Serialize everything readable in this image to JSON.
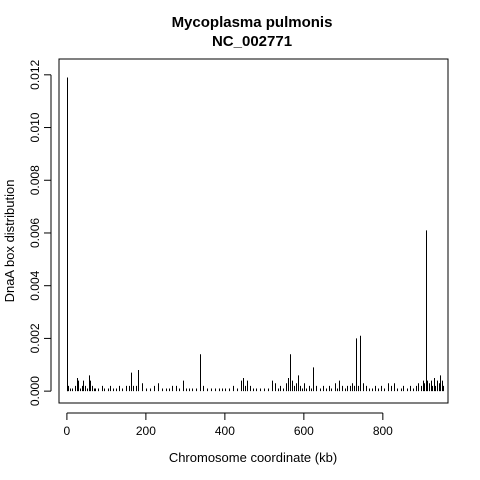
{
  "chart_data": {
    "type": "bar",
    "style": "vertical histogram lines",
    "title": "Mycoplasma pulmonis",
    "subtitle": "NC_002771",
    "xlabel": "Chromosome coordinate (kb)",
    "ylabel": "DnaA box distribution",
    "xlim": [
      -20,
      965
    ],
    "ylim": [
      -0.00045,
      0.0126
    ],
    "xticks": [
      0,
      200,
      400,
      600,
      800
    ],
    "yticks": [
      0,
      0.002,
      0.004,
      0.006,
      0.008,
      0.01,
      0.012
    ],
    "xtick_labels": [
      "0",
      "200",
      "400",
      "600",
      "800"
    ],
    "ytick_labels": [
      "0.000",
      "0.002",
      "0.004",
      "0.006",
      "0.008",
      "0.010",
      "0.012"
    ],
    "grid": false,
    "legend": "none",
    "bar_color": "#000000",
    "x": [
      0,
      1,
      3,
      8,
      14,
      20,
      25,
      29,
      33,
      37,
      42,
      46,
      50,
      55,
      59,
      63,
      68,
      72,
      80,
      88,
      95,
      103,
      110,
      118,
      125,
      133,
      140,
      150,
      158,
      163,
      168,
      175,
      181,
      190,
      200,
      210,
      220,
      230,
      240,
      250,
      258,
      266,
      275,
      285,
      295,
      302,
      310,
      318,
      328,
      336,
      345,
      355,
      365,
      375,
      385,
      393,
      400,
      410,
      420,
      430,
      441,
      446,
      451,
      457,
      463,
      472,
      480,
      490,
      500,
      510,
      520,
      528,
      534,
      540,
      548,
      556,
      561,
      565,
      569,
      574,
      579,
      585,
      590,
      595,
      600,
      606,
      612,
      618,
      624,
      630,
      640,
      648,
      655,
      663,
      670,
      678,
      684,
      690,
      696,
      703,
      710,
      717,
      722,
      727,
      733,
      738,
      743,
      750,
      757,
      765,
      772,
      780,
      788,
      796,
      804,
      812,
      820,
      828,
      836,
      845,
      852,
      860,
      868,
      876,
      884,
      890,
      896,
      901,
      905,
      909,
      913,
      917,
      921,
      925,
      929,
      933,
      937,
      941,
      945,
      949,
      953
    ],
    "y": [
      0.0119,
      0.0006,
      0.0002,
      0.0001,
      0.0001,
      0.0002,
      0.0005,
      0.0004,
      0.0001,
      0.0002,
      0.0004,
      0.0002,
      0.0001,
      0.0006,
      0.0004,
      0.0002,
      0.0001,
      0.0001,
      0.0001,
      0.0002,
      0.0001,
      0.0001,
      0.0002,
      0.0001,
      0.0001,
      0.0002,
      0.0001,
      0.0002,
      0.0002,
      0.0007,
      0.0002,
      0.0002,
      0.0008,
      0.0003,
      0.0001,
      0.0001,
      0.0002,
      0.0003,
      0.0001,
      0.0001,
      0.0001,
      0.0002,
      0.0002,
      0.0001,
      0.0004,
      0.0001,
      0.0001,
      0.0001,
      0.0001,
      0.0014,
      0.0002,
      0.0001,
      0.0001,
      0.0001,
      0.0001,
      0.0001,
      0.0001,
      0.0001,
      0.0002,
      0.0001,
      0.0004,
      0.0005,
      0.0002,
      0.0004,
      0.0002,
      0.0001,
      0.0001,
      0.0001,
      0.0001,
      0.0001,
      0.0004,
      0.0003,
      0.0001,
      0.0002,
      0.0001,
      0.0003,
      0.0005,
      0.0014,
      0.0004,
      0.0002,
      0.0003,
      0.0006,
      0.0002,
      0.0001,
      0.0003,
      0.0001,
      0.0002,
      0.0001,
      0.0009,
      0.0002,
      0.0001,
      0.0002,
      0.0001,
      0.0002,
      0.0001,
      0.0003,
      0.0001,
      0.0004,
      0.0002,
      0.0001,
      0.0002,
      0.0002,
      0.0003,
      0.0002,
      0.002,
      0.0002,
      0.0021,
      0.0003,
      0.0002,
      0.0001,
      0.0001,
      0.0002,
      0.0001,
      0.0002,
      0.0001,
      0.0003,
      0.0002,
      0.0003,
      0.0001,
      0.0001,
      0.0002,
      0.0001,
      0.0002,
      0.0001,
      0.0002,
      0.0003,
      0.0002,
      0.0004,
      0.0003,
      0.0061,
      0.0004,
      0.0003,
      0.0004,
      0.0002,
      0.0005,
      0.0002,
      0.0004,
      0.0003,
      0.0006,
      0.0004,
      0.0002
    ]
  }
}
